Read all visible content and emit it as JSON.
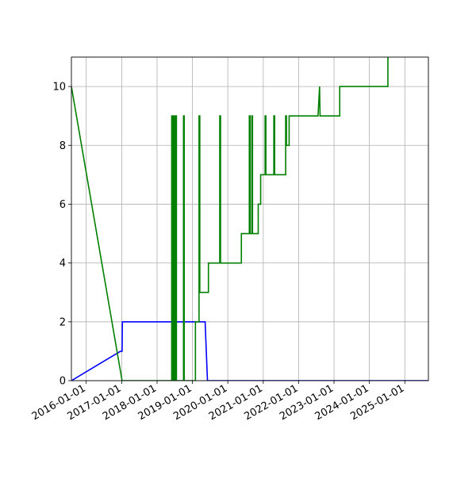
{
  "chart_data": {
    "type": "line",
    "xlabel": "",
    "ylabel": "",
    "title": "",
    "grid": true,
    "xlim": [
      "2015-08-01",
      "2025-09-01"
    ],
    "ylim": [
      0,
      11
    ],
    "x_ticks": [
      "2016-01-01",
      "2017-01-01",
      "2018-01-01",
      "2019-01-01",
      "2020-01-01",
      "2021-01-01",
      "2022-01-01",
      "2023-01-01",
      "2024-01-01",
      "2025-01-01"
    ],
    "y_ticks": [
      0,
      2,
      4,
      6,
      8,
      10
    ],
    "series": [
      {
        "color": "#0000ff",
        "points": [
          [
            "2015-08-01",
            0
          ],
          [
            "2016-12-20",
            1
          ],
          [
            "2017-01-05",
            1
          ],
          [
            "2017-01-08",
            2
          ],
          [
            "2019-04-05",
            2
          ],
          [
            "2019-05-12",
            2
          ],
          [
            "2019-06-05",
            0
          ],
          [
            "2025-09-01",
            0
          ]
        ]
      },
      {
        "color": "#008000",
        "points": [
          [
            "2015-08-01",
            10
          ],
          [
            "2017-01-05",
            0
          ],
          [
            "2018-06-01",
            0
          ],
          [
            "2018-06-01",
            9
          ],
          [
            "2018-06-10",
            9
          ],
          [
            "2018-06-10",
            0
          ],
          [
            "2018-06-20",
            0
          ],
          [
            "2018-06-20",
            9
          ],
          [
            "2018-07-01",
            9
          ],
          [
            "2018-07-01",
            0
          ],
          [
            "2018-07-12",
            0
          ],
          [
            "2018-07-12",
            9
          ],
          [
            "2018-07-20",
            9
          ],
          [
            "2018-07-20",
            0
          ],
          [
            "2018-10-01",
            0
          ],
          [
            "2018-10-01",
            9
          ],
          [
            "2018-10-08",
            9
          ],
          [
            "2018-10-08",
            0
          ],
          [
            "2019-02-01",
            0
          ],
          [
            "2019-02-01",
            2
          ],
          [
            "2019-03-10",
            2
          ],
          [
            "2019-03-10",
            9
          ],
          [
            "2019-03-18",
            9
          ],
          [
            "2019-03-18",
            3
          ],
          [
            "2019-06-15",
            3
          ],
          [
            "2019-06-15",
            4
          ],
          [
            "2019-10-10",
            4
          ],
          [
            "2019-10-10",
            9
          ],
          [
            "2019-10-18",
            9
          ],
          [
            "2019-10-18",
            4
          ],
          [
            "2020-05-20",
            4
          ],
          [
            "2020-05-20",
            5
          ],
          [
            "2020-08-10",
            5
          ],
          [
            "2020-08-10",
            9
          ],
          [
            "2020-08-18",
            9
          ],
          [
            "2020-08-18",
            5
          ],
          [
            "2020-09-05",
            5
          ],
          [
            "2020-09-05",
            9
          ],
          [
            "2020-09-12",
            9
          ],
          [
            "2020-09-12",
            5
          ],
          [
            "2020-11-10",
            5
          ],
          [
            "2020-11-10",
            6
          ],
          [
            "2020-12-05",
            6
          ],
          [
            "2020-12-05",
            7
          ],
          [
            "2021-01-20",
            7
          ],
          [
            "2021-01-20",
            9
          ],
          [
            "2021-01-28",
            9
          ],
          [
            "2021-01-28",
            7
          ],
          [
            "2021-04-20",
            7
          ],
          [
            "2021-04-20",
            9
          ],
          [
            "2021-04-28",
            9
          ],
          [
            "2021-04-28",
            7
          ],
          [
            "2021-08-20",
            7
          ],
          [
            "2021-08-20",
            9
          ],
          [
            "2021-08-28",
            9
          ],
          [
            "2021-08-28",
            8
          ],
          [
            "2021-09-25",
            8
          ],
          [
            "2021-09-25",
            9
          ],
          [
            "2022-07-20",
            9
          ],
          [
            "2022-08-05",
            10
          ],
          [
            "2022-08-10",
            9
          ],
          [
            "2023-03-01",
            9
          ],
          [
            "2023-03-01",
            10
          ],
          [
            "2024-07-10",
            10
          ],
          [
            "2024-07-10",
            11.2
          ]
        ]
      }
    ]
  }
}
